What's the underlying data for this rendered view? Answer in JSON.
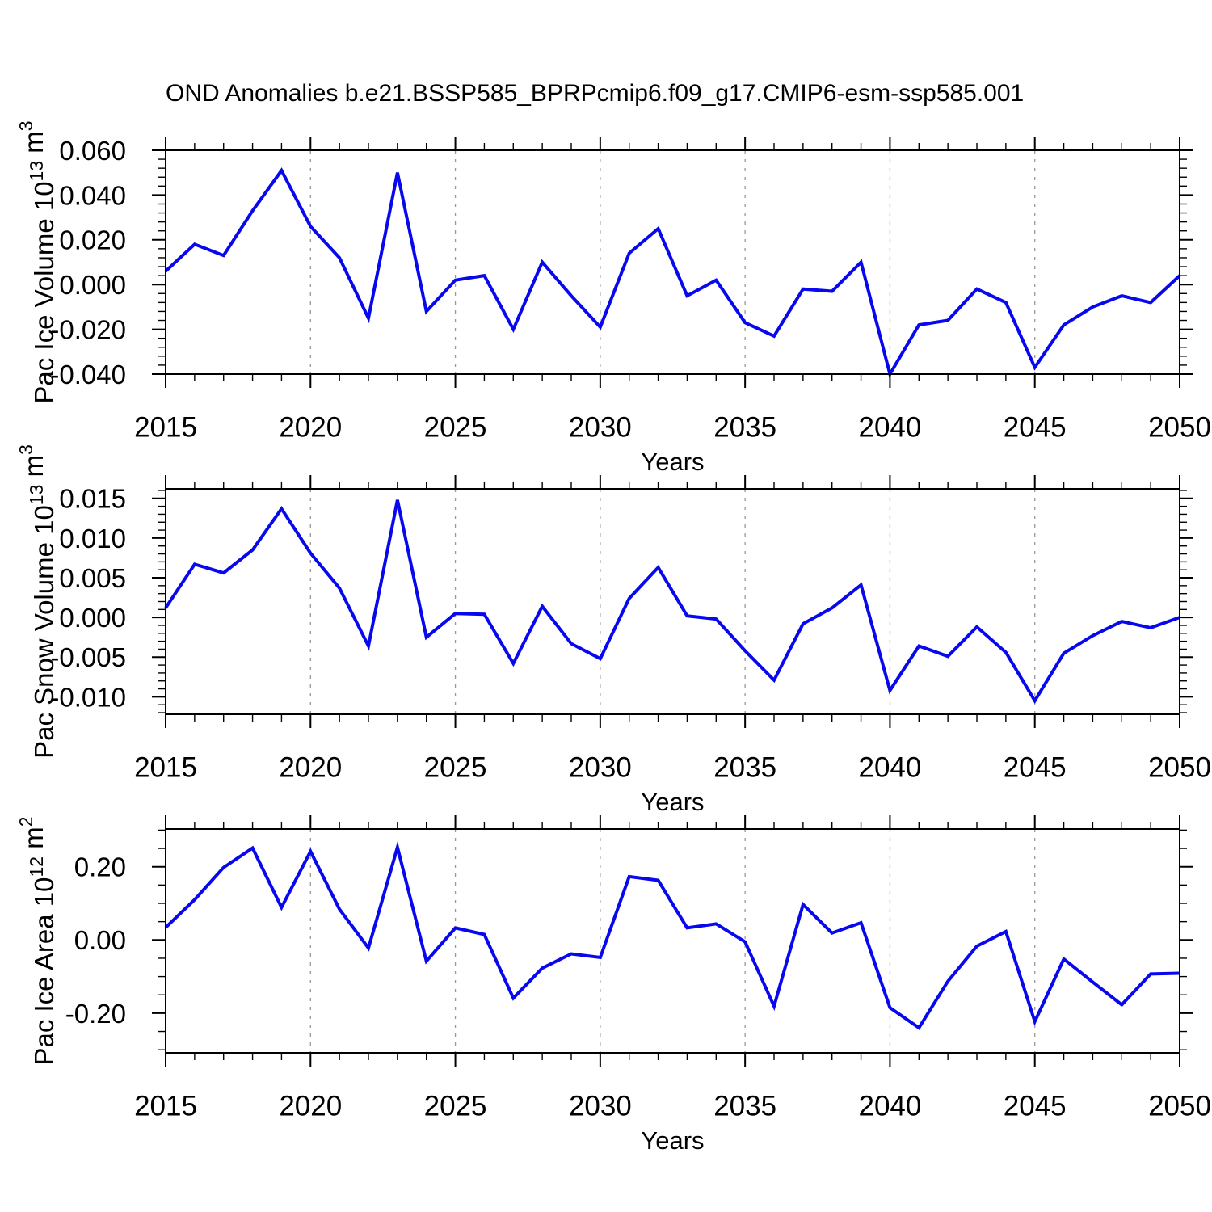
{
  "title": "OND Anomalies b.e21.BSSP585_BPRPcmip6.f09_g17.CMIP6-esm-ssp585.001",
  "xlabel": "Years",
  "colors": {
    "line": "#0808ee",
    "axis": "#000000",
    "grid": "#989898",
    "text": "#000000",
    "background": "#ffffff"
  },
  "years": [
    2015,
    2016,
    2017,
    2018,
    2019,
    2020,
    2021,
    2022,
    2023,
    2024,
    2025,
    2026,
    2027,
    2028,
    2029,
    2030,
    2031,
    2032,
    2033,
    2034,
    2035,
    2036,
    2037,
    2038,
    2039,
    2040,
    2041,
    2042,
    2043,
    2044,
    2045,
    2046,
    2047,
    2048,
    2049,
    2050
  ],
  "chart_data": [
    {
      "type": "line",
      "name": "pac-ice-volume",
      "ylabel": "Pac Ice Volume 10^13 m^3",
      "ylabel_parts": [
        {
          "text": "Pac Ice Volume 10"
        },
        {
          "text": "13",
          "sup": true
        },
        {
          "text": " m"
        },
        {
          "text": "3",
          "sup": true
        }
      ],
      "xlabel": "Years",
      "xlim": [
        2015,
        2050
      ],
      "ylim": [
        -0.04,
        0.06
      ],
      "yticks_major": [
        0.06,
        0.04,
        0.02,
        0.0,
        -0.02,
        -0.04
      ],
      "ytick_labels": [
        "0.060",
        "0.040",
        "0.020",
        "0.000",
        "-0.020",
        "-0.040"
      ],
      "ytick_minor_step": 0.004,
      "xticks_major": [
        2015,
        2020,
        2025,
        2030,
        2035,
        2040,
        2045,
        2050
      ],
      "xtick_minor_step": 1,
      "gridlines_x": [
        2020,
        2025,
        2030,
        2035,
        2040,
        2045
      ],
      "values": [
        0.006,
        0.018,
        0.013,
        0.033,
        0.051,
        0.026,
        0.012,
        -0.015,
        0.05,
        -0.012,
        0.002,
        0.004,
        -0.02,
        0.01,
        -0.005,
        -0.019,
        0.014,
        0.025,
        -0.005,
        0.002,
        -0.017,
        -0.023,
        -0.002,
        -0.003,
        0.01,
        -0.04,
        -0.018,
        -0.016,
        -0.002,
        -0.008,
        -0.037,
        -0.018,
        -0.01,
        -0.005,
        -0.008,
        0.004
      ]
    },
    {
      "type": "line",
      "name": "pac-snow-volume",
      "ylabel": "Pac Snow Volume 10^13 m^3",
      "ylabel_parts": [
        {
          "text": "Pac Snow Volume 10"
        },
        {
          "text": "13",
          "sup": true
        },
        {
          "text": " m"
        },
        {
          "text": "3",
          "sup": true
        }
      ],
      "xlabel": "Years",
      "xlim": [
        2015,
        2050
      ],
      "ylim": [
        -0.0122,
        0.0162
      ],
      "yticks_major": [
        0.015,
        0.01,
        0.005,
        0.0,
        -0.005,
        -0.01
      ],
      "ytick_labels": [
        "0.015",
        "0.010",
        "0.005",
        "0.000",
        "-0.005",
        "-0.010"
      ],
      "ytick_minor_step": 0.001,
      "xticks_major": [
        2015,
        2020,
        2025,
        2030,
        2035,
        2040,
        2045,
        2050
      ],
      "xtick_minor_step": 1,
      "gridlines_x": [
        2020,
        2025,
        2030,
        2035,
        2040,
        2045
      ],
      "values": [
        0.0012,
        0.0067,
        0.0056,
        0.0085,
        0.0137,
        0.0081,
        0.0037,
        -0.0036,
        0.0148,
        -0.0025,
        0.0005,
        0.0004,
        -0.0058,
        0.0014,
        -0.0033,
        -0.0052,
        0.0024,
        0.0063,
        0.0002,
        -0.0002,
        -0.0042,
        -0.0079,
        -0.0008,
        0.0012,
        0.0041,
        -0.0092,
        -0.0036,
        -0.0049,
        -0.0012,
        -0.0044,
        -0.0105,
        -0.0045,
        -0.0023,
        -0.0005,
        -0.0013,
        0.0
      ]
    },
    {
      "type": "line",
      "name": "pac-ice-area",
      "ylabel": "Pac Ice Area 10^12 m^2",
      "ylabel_parts": [
        {
          "text": "Pac Ice Area 10"
        },
        {
          "text": "12",
          "sup": true
        },
        {
          "text": " m"
        },
        {
          "text": "2",
          "sup": true
        }
      ],
      "xlabel": "Years",
      "xlim": [
        2015,
        2050
      ],
      "ylim": [
        -0.3084,
        0.3031
      ],
      "yticks_major": [
        0.2,
        0.0,
        -0.2
      ],
      "ytick_labels": [
        "0.20",
        "0.00",
        "-0.20"
      ],
      "ytick_minor_step": 0.05,
      "xticks_major": [
        2015,
        2020,
        2025,
        2030,
        2035,
        2040,
        2045,
        2050
      ],
      "xtick_minor_step": 1,
      "gridlines_x": [
        2020,
        2025,
        2030,
        2035,
        2040,
        2045
      ],
      "values": [
        0.034,
        0.11,
        0.198,
        0.251,
        0.089,
        0.242,
        0.084,
        -0.022,
        0.253,
        -0.058,
        0.033,
        0.015,
        -0.159,
        -0.077,
        -0.038,
        -0.048,
        0.173,
        0.163,
        0.033,
        0.044,
        -0.005,
        -0.181,
        0.097,
        0.019,
        0.047,
        -0.185,
        -0.24,
        -0.113,
        -0.017,
        0.023,
        -0.223,
        -0.052,
        -0.115,
        -0.177,
        -0.093,
        -0.091
      ]
    }
  ]
}
